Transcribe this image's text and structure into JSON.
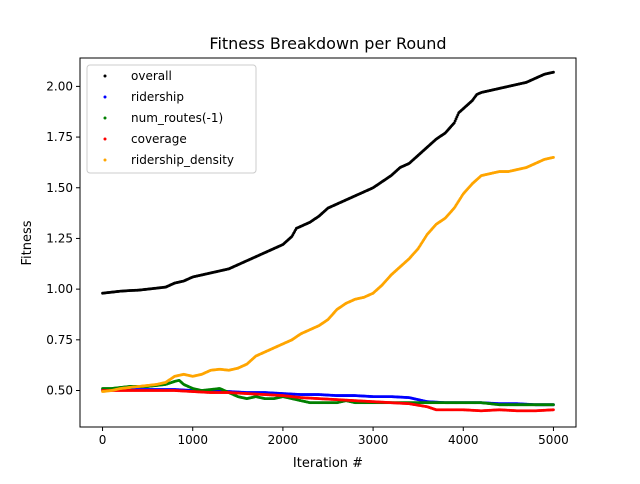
{
  "chart_data": {
    "type": "scatter",
    "title": "Fitness Breakdown per Round",
    "xlabel": "Iteration #",
    "ylabel": "Fitness",
    "xlim": [
      -250,
      5250
    ],
    "ylim": [
      0.32,
      2.14
    ],
    "xticks": [
      0,
      1000,
      2000,
      3000,
      4000,
      5000
    ],
    "xtick_labels": [
      "0",
      "1000",
      "2000",
      "3000",
      "4000",
      "5000"
    ],
    "yticks": [
      0.5,
      0.75,
      1.0,
      1.25,
      1.5,
      1.75,
      2.0
    ],
    "ytick_labels": [
      "0.50",
      "0.75",
      "1.00",
      "1.25",
      "1.50",
      "1.75",
      "2.00"
    ],
    "grid": false,
    "legend_position": "upper-left",
    "series": [
      {
        "name": "overall",
        "color": "#000000",
        "points": [
          [
            0,
            0.98
          ],
          [
            100,
            0.985
          ],
          [
            200,
            0.99
          ],
          [
            300,
            0.993
          ],
          [
            400,
            0.995
          ],
          [
            500,
            1.0
          ],
          [
            600,
            1.005
          ],
          [
            700,
            1.01
          ],
          [
            800,
            1.03
          ],
          [
            900,
            1.04
          ],
          [
            1000,
            1.06
          ],
          [
            1100,
            1.07
          ],
          [
            1200,
            1.08
          ],
          [
            1300,
            1.09
          ],
          [
            1400,
            1.1
          ],
          [
            1500,
            1.12
          ],
          [
            1600,
            1.14
          ],
          [
            1700,
            1.16
          ],
          [
            1800,
            1.18
          ],
          [
            1900,
            1.2
          ],
          [
            2000,
            1.22
          ],
          [
            2100,
            1.26
          ],
          [
            2150,
            1.3
          ],
          [
            2200,
            1.31
          ],
          [
            2300,
            1.33
          ],
          [
            2400,
            1.36
          ],
          [
            2500,
            1.4
          ],
          [
            2600,
            1.42
          ],
          [
            2700,
            1.44
          ],
          [
            2800,
            1.46
          ],
          [
            2900,
            1.48
          ],
          [
            3000,
            1.5
          ],
          [
            3100,
            1.53
          ],
          [
            3200,
            1.56
          ],
          [
            3300,
            1.6
          ],
          [
            3400,
            1.62
          ],
          [
            3500,
            1.66
          ],
          [
            3600,
            1.7
          ],
          [
            3700,
            1.74
          ],
          [
            3800,
            1.77
          ],
          [
            3900,
            1.82
          ],
          [
            3950,
            1.87
          ],
          [
            4000,
            1.89
          ],
          [
            4100,
            1.93
          ],
          [
            4150,
            1.96
          ],
          [
            4200,
            1.97
          ],
          [
            4300,
            1.98
          ],
          [
            4400,
            1.99
          ],
          [
            4500,
            2.0
          ],
          [
            4600,
            2.01
          ],
          [
            4700,
            2.02
          ],
          [
            4800,
            2.04
          ],
          [
            4900,
            2.06
          ],
          [
            5000,
            2.07
          ]
        ]
      },
      {
        "name": "ridership",
        "color": "#0000ff",
        "points": [
          [
            0,
            0.505
          ],
          [
            200,
            0.505
          ],
          [
            400,
            0.505
          ],
          [
            600,
            0.505
          ],
          [
            800,
            0.505
          ],
          [
            1000,
            0.5
          ],
          [
            1200,
            0.5
          ],
          [
            1400,
            0.495
          ],
          [
            1600,
            0.49
          ],
          [
            1800,
            0.49
          ],
          [
            2000,
            0.485
          ],
          [
            2200,
            0.48
          ],
          [
            2400,
            0.48
          ],
          [
            2600,
            0.475
          ],
          [
            2800,
            0.475
          ],
          [
            3000,
            0.47
          ],
          [
            3200,
            0.47
          ],
          [
            3400,
            0.465
          ],
          [
            3600,
            0.445
          ],
          [
            3800,
            0.44
          ],
          [
            4000,
            0.44
          ],
          [
            4200,
            0.44
          ],
          [
            4400,
            0.435
          ],
          [
            4600,
            0.435
          ],
          [
            4800,
            0.43
          ],
          [
            5000,
            0.43
          ]
        ]
      },
      {
        "name": "num_routes(-1)",
        "color": "#008000",
        "points": [
          [
            0,
            0.51
          ],
          [
            100,
            0.51
          ],
          [
            200,
            0.515
          ],
          [
            300,
            0.52
          ],
          [
            400,
            0.52
          ],
          [
            500,
            0.52
          ],
          [
            600,
            0.525
          ],
          [
            700,
            0.53
          ],
          [
            800,
            0.545
          ],
          [
            850,
            0.55
          ],
          [
            900,
            0.53
          ],
          [
            950,
            0.52
          ],
          [
            1000,
            0.51
          ],
          [
            1100,
            0.5
          ],
          [
            1200,
            0.505
          ],
          [
            1300,
            0.51
          ],
          [
            1400,
            0.49
          ],
          [
            1500,
            0.47
          ],
          [
            1600,
            0.46
          ],
          [
            1700,
            0.47
          ],
          [
            1800,
            0.46
          ],
          [
            1900,
            0.46
          ],
          [
            2000,
            0.47
          ],
          [
            2100,
            0.46
          ],
          [
            2200,
            0.45
          ],
          [
            2300,
            0.44
          ],
          [
            2400,
            0.44
          ],
          [
            2500,
            0.44
          ],
          [
            2600,
            0.44
          ],
          [
            2700,
            0.45
          ],
          [
            2800,
            0.44
          ],
          [
            2900,
            0.44
          ],
          [
            3000,
            0.44
          ],
          [
            3200,
            0.44
          ],
          [
            3400,
            0.44
          ],
          [
            3600,
            0.44
          ],
          [
            3800,
            0.44
          ],
          [
            4000,
            0.44
          ],
          [
            4200,
            0.44
          ],
          [
            4400,
            0.43
          ],
          [
            4600,
            0.43
          ],
          [
            4800,
            0.43
          ],
          [
            5000,
            0.43
          ]
        ]
      },
      {
        "name": "coverage",
        "color": "#ff0000",
        "points": [
          [
            0,
            0.5
          ],
          [
            200,
            0.5
          ],
          [
            400,
            0.5
          ],
          [
            600,
            0.5
          ],
          [
            800,
            0.5
          ],
          [
            1000,
            0.495
          ],
          [
            1200,
            0.49
          ],
          [
            1400,
            0.49
          ],
          [
            1600,
            0.485
          ],
          [
            1800,
            0.48
          ],
          [
            2000,
            0.475
          ],
          [
            2200,
            0.465
          ],
          [
            2400,
            0.46
          ],
          [
            2600,
            0.455
          ],
          [
            2800,
            0.45
          ],
          [
            3000,
            0.445
          ],
          [
            3200,
            0.44
          ],
          [
            3400,
            0.435
          ],
          [
            3600,
            0.42
          ],
          [
            3700,
            0.405
          ],
          [
            3800,
            0.405
          ],
          [
            4000,
            0.405
          ],
          [
            4200,
            0.4
          ],
          [
            4400,
            0.405
          ],
          [
            4600,
            0.4
          ],
          [
            4800,
            0.4
          ],
          [
            5000,
            0.405
          ]
        ]
      },
      {
        "name": "ridership_density",
        "color": "#ffa500",
        "points": [
          [
            0,
            0.495
          ],
          [
            100,
            0.5
          ],
          [
            200,
            0.51
          ],
          [
            300,
            0.515
          ],
          [
            400,
            0.52
          ],
          [
            500,
            0.525
          ],
          [
            600,
            0.53
          ],
          [
            700,
            0.54
          ],
          [
            800,
            0.57
          ],
          [
            900,
            0.58
          ],
          [
            1000,
            0.57
          ],
          [
            1100,
            0.58
          ],
          [
            1200,
            0.6
          ],
          [
            1300,
            0.605
          ],
          [
            1400,
            0.6
          ],
          [
            1500,
            0.61
          ],
          [
            1600,
            0.63
          ],
          [
            1700,
            0.67
          ],
          [
            1800,
            0.69
          ],
          [
            1900,
            0.71
          ],
          [
            2000,
            0.73
          ],
          [
            2100,
            0.75
          ],
          [
            2200,
            0.78
          ],
          [
            2300,
            0.8
          ],
          [
            2400,
            0.82
          ],
          [
            2500,
            0.85
          ],
          [
            2600,
            0.9
          ],
          [
            2700,
            0.93
          ],
          [
            2800,
            0.95
          ],
          [
            2900,
            0.96
          ],
          [
            3000,
            0.98
          ],
          [
            3100,
            1.02
          ],
          [
            3200,
            1.07
          ],
          [
            3300,
            1.11
          ],
          [
            3400,
            1.15
          ],
          [
            3500,
            1.2
          ],
          [
            3600,
            1.27
          ],
          [
            3700,
            1.32
          ],
          [
            3800,
            1.35
          ],
          [
            3900,
            1.4
          ],
          [
            4000,
            1.47
          ],
          [
            4100,
            1.52
          ],
          [
            4200,
            1.56
          ],
          [
            4300,
            1.57
          ],
          [
            4400,
            1.58
          ],
          [
            4500,
            1.58
          ],
          [
            4600,
            1.59
          ],
          [
            4700,
            1.6
          ],
          [
            4800,
            1.62
          ],
          [
            4900,
            1.64
          ],
          [
            5000,
            1.65
          ]
        ]
      }
    ]
  }
}
